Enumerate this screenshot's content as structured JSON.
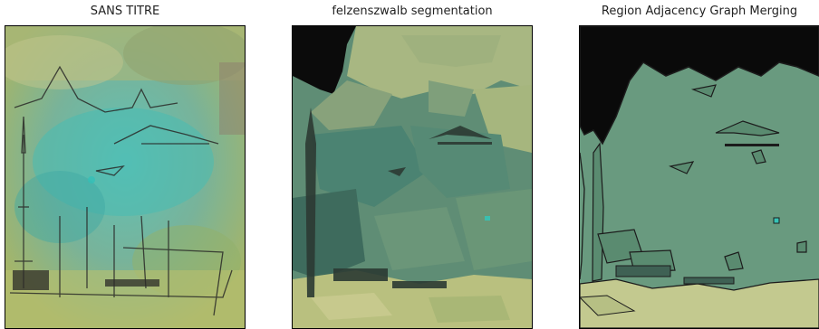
{
  "panels": [
    {
      "title": "SANS TITRE"
    },
    {
      "title": "felzenszwalb segmentation"
    },
    {
      "title": "Region Adjacency Graph Merging"
    }
  ],
  "colors": {
    "painting_teal": "#52b3ad",
    "painting_olive": "#a7b463",
    "segment_green": "#5f8d75",
    "segment_sand": "#b9c07f",
    "rag_green": "#699a7f",
    "rag_sand": "#c3c98f",
    "outline": "#1c1c1c"
  }
}
